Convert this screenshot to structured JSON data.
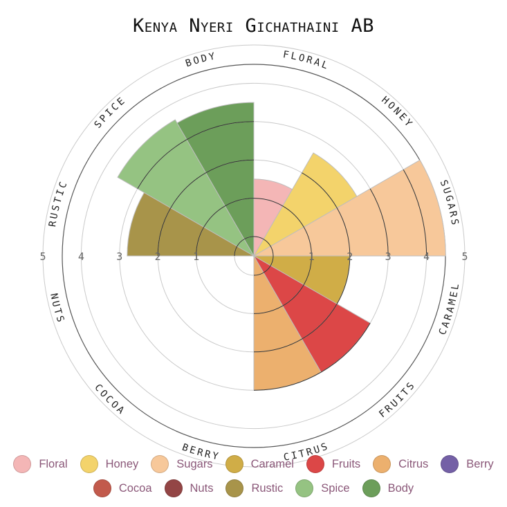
{
  "chart_data": {
    "type": "polar-area",
    "title": "Kenya Nyeri Gichathaini AB",
    "radial_max": 5,
    "tick_labels": [
      "1",
      "2",
      "3",
      "4",
      "5"
    ],
    "categories": [
      "Floral",
      "Honey",
      "Sugars",
      "Caramel",
      "Fruits",
      "Citrus",
      "Berry",
      "Cocoa",
      "Nuts",
      "Rustic",
      "Spice",
      "Body"
    ],
    "axis_labels": [
      "FLORAL",
      "HONEY",
      "SUGARS",
      "CARAMEL",
      "FRUITS",
      "CITRUS",
      "BERRY",
      "COCOA",
      "NUTS",
      "RUSTIC",
      "SPICE",
      "BODY"
    ],
    "values": [
      1.5,
      2.6,
      4.5,
      2.0,
      3.0,
      3.0,
      0,
      0,
      0,
      2.8,
      3.6,
      3.5
    ],
    "colors": [
      "#f4b6b6",
      "#f3d36b",
      "#f7c89a",
      "#d0ad47",
      "#dc4747",
      "#ecb06e",
      "#7460a6",
      "#c25a4c",
      "#934545",
      "#a8944a",
      "#95c382",
      "#6c9e5a"
    ],
    "legend": {
      "row1": [
        "Floral",
        "Honey",
        "Sugars",
        "Caramel",
        "Fruits",
        "Citrus",
        "Berry"
      ],
      "row2": [
        "Cocoa",
        "Nuts",
        "Rustic",
        "Spice",
        "Body"
      ]
    }
  }
}
